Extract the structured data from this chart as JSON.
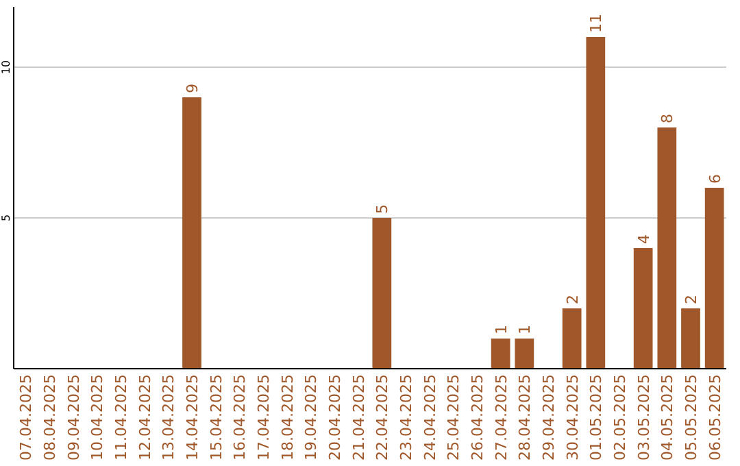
{
  "chart_data": {
    "type": "bar",
    "categories": [
      "07.04.2025",
      "08.04.2025",
      "09.04.2025",
      "10.04.2025",
      "11.04.2025",
      "12.04.2025",
      "13.04.2025",
      "14.04.2025",
      "15.04.2025",
      "16.04.2025",
      "17.04.2025",
      "18.04.2025",
      "19.04.2025",
      "20.04.2025",
      "21.04.2025",
      "22.04.2025",
      "23.04.2025",
      "24.04.2025",
      "25.04.2025",
      "26.04.2025",
      "27.04.2025",
      "28.04.2025",
      "29.04.2025",
      "30.04.2025",
      "01.05.2025",
      "02.05.2025",
      "03.05.2025",
      "04.05.2025",
      "05.05.2025",
      "06.05.2025"
    ],
    "values": [
      0,
      0,
      0,
      0,
      0,
      0,
      0,
      9,
      0,
      0,
      0,
      0,
      0,
      0,
      0,
      5,
      0,
      0,
      0,
      0,
      1,
      1,
      0,
      2,
      11,
      0,
      4,
      8,
      2,
      6
    ],
    "value_labels": [
      null,
      null,
      null,
      null,
      null,
      null,
      null,
      "9",
      null,
      null,
      null,
      null,
      null,
      null,
      null,
      "5",
      null,
      null,
      null,
      null,
      "1",
      "1",
      null,
      "2",
      "11",
      null,
      "4",
      "8",
      "2",
      "6"
    ],
    "color": "#a0582a",
    "ylim": [
      0,
      12
    ],
    "yticks": [
      5,
      10
    ],
    "grid": "y"
  }
}
